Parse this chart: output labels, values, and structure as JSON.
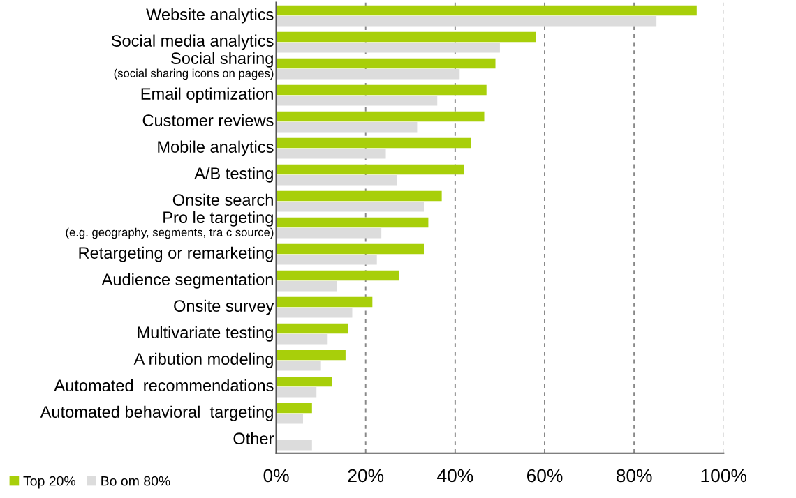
{
  "chart_data": {
    "type": "bar",
    "orientation": "horizontal",
    "categories": [
      "Website analytics",
      "Social media analytics",
      "Social sharing\n(social sharing icons on pages)",
      "Email optimization",
      "Customer reviews",
      "Mobile analytics",
      "A/B testing",
      "Onsite search",
      "Pro le targeting\n(e.g. geography, segments, tra c source)",
      "Retargeting or remarketing",
      "Audience segmentation",
      "Onsite survey",
      "Multivariate testing",
      "A ribution modeling",
      "Automated  recommendations",
      "Automated behavioral  targeting",
      "Other"
    ],
    "series": [
      {
        "name": "Top 20%",
        "color": "#a8cf0a",
        "values": [
          94,
          58,
          49,
          47,
          46.5,
          43.5,
          42,
          37,
          34,
          33,
          27.5,
          21.5,
          16,
          15.5,
          12.5,
          8,
          null
        ]
      },
      {
        "name": "Bo om 80%",
        "color": "#dcdcdc",
        "values": [
          85,
          50,
          41,
          36,
          31.5,
          24.5,
          27,
          33,
          23.5,
          22.5,
          13.5,
          17,
          11.5,
          10,
          9,
          6,
          8
        ]
      }
    ],
    "xlim": [
      0,
      100
    ],
    "xticks": [
      {
        "value": 0,
        "label": "0%"
      },
      {
        "value": 20,
        "label": "20%"
      },
      {
        "value": 40,
        "label": "40%"
      },
      {
        "value": 60,
        "label": "60%"
      },
      {
        "value": 80,
        "label": "80%"
      },
      {
        "value": 100,
        "label": "100%"
      }
    ],
    "grid": "x",
    "legend": "bottom left"
  }
}
